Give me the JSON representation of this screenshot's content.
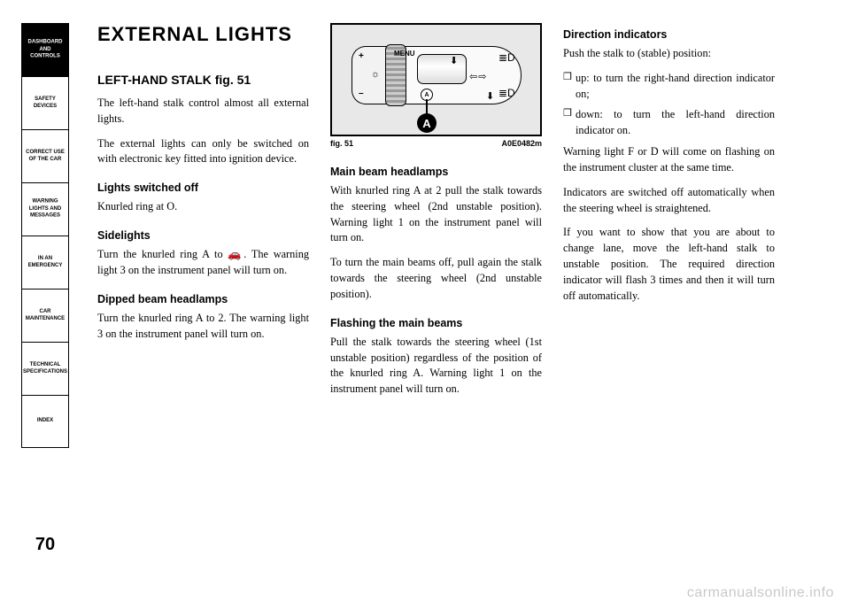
{
  "sidebar": {
    "tabs": [
      {
        "label": "DASHBOARD\nAND\nCONTROLS",
        "active": true
      },
      {
        "label": "SAFETY\nDEVICES",
        "active": false
      },
      {
        "label": "CORRECT USE\nOF THE CAR",
        "active": false
      },
      {
        "label": "WARNING\nLIGHTS AND\nMESSAGES",
        "active": false
      },
      {
        "label": "IN AN\nEMERGENCY",
        "active": false
      },
      {
        "label": "CAR\nMAINTENANCE",
        "active": false
      },
      {
        "label": "TECHNICAL\nSPECIFICATIONS",
        "active": false
      },
      {
        "label": "INDEX",
        "active": false
      }
    ]
  },
  "page_number": "70",
  "title": "EXTERNAL LIGHTS",
  "col1": {
    "h2": "LEFT-HAND STALK fig. 51",
    "p1": "The left-hand stalk control almost all external lights.",
    "p2": "The external lights can only be switched on with electronic key fitted into ignition device.",
    "h3a": "Lights switched off",
    "p3": "Knurled ring at O.",
    "h3b": "Sidelights",
    "p4": "Turn the knurled ring A to 🚗. The warning light 3 on the instrument panel will turn on.",
    "h3c": "Dipped beam headlamps",
    "p5": "Turn the knurled ring A to 2. The warning light 3 on the instrument panel will turn on."
  },
  "figure": {
    "menu": "MENU",
    "A": "A",
    "caption": "fig. 51",
    "code": "A0E0482m"
  },
  "col2": {
    "h3a": "Main beam headlamps",
    "p1": "With knurled ring A at 2 pull the stalk towards the steering wheel (2nd unstable position). Warning light 1 on the instrument panel will turn on.",
    "p2": "To turn the main beams off, pull again the stalk towards the steering wheel (2nd unstable position).",
    "h3b": "Flashing the main beams",
    "p3": "Pull the stalk towards the steering wheel (1st unstable position) regardless of the position of the knurled ring A. Warning light 1 on the instrument panel will turn on."
  },
  "col3": {
    "h3a": "Direction indicators",
    "p1": "Push the stalk to (stable) position:",
    "li1": "up: to turn the right-hand direction indicator on;",
    "li2": "down: to turn the left-hand direction indicator on.",
    "p2": "Warning light F or D will come on flashing on the instrument cluster at the same time.",
    "p3": "Indicators are switched off automatically when the steering wheel is straightened.",
    "p4": "If you want to show that you are about to change lane, move the left-hand stalk to unstable position. The required direction indicator will flash 3 times and then it will turn off automatically."
  },
  "watermark": "carmanualsonline.info"
}
